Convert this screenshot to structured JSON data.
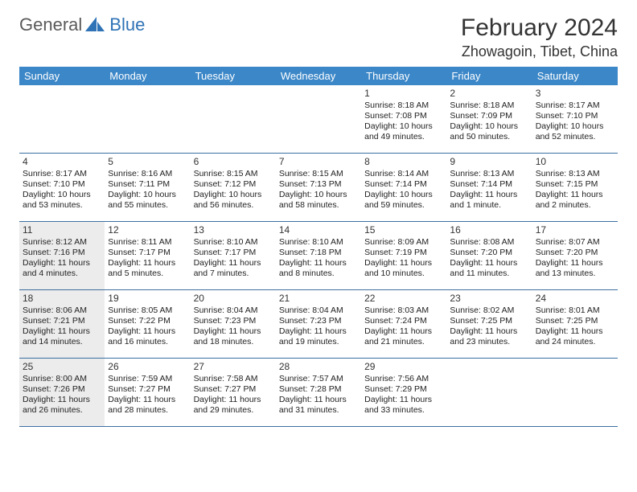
{
  "logo": {
    "text1": "General",
    "text2": "Blue"
  },
  "title": "February 2024",
  "location": "Zhowagoin, Tibet, China",
  "colors": {
    "header_bg": "#3b87c8",
    "header_text": "#ffffff",
    "rule": "#3b6fa0",
    "shade": "#ececec",
    "logo_gray": "#5b5b5b",
    "logo_blue": "#2f73b6"
  },
  "day_headers": [
    "Sunday",
    "Monday",
    "Tuesday",
    "Wednesday",
    "Thursday",
    "Friday",
    "Saturday"
  ],
  "weeks": [
    [
      {
        "n": "",
        "sr": "",
        "ss": "",
        "dl1": "",
        "dl2": "",
        "shade": false
      },
      {
        "n": "",
        "sr": "",
        "ss": "",
        "dl1": "",
        "dl2": "",
        "shade": false
      },
      {
        "n": "",
        "sr": "",
        "ss": "",
        "dl1": "",
        "dl2": "",
        "shade": false
      },
      {
        "n": "",
        "sr": "",
        "ss": "",
        "dl1": "",
        "dl2": "",
        "shade": false
      },
      {
        "n": "1",
        "sr": "Sunrise: 8:18 AM",
        "ss": "Sunset: 7:08 PM",
        "dl1": "Daylight: 10 hours",
        "dl2": "and 49 minutes.",
        "shade": false
      },
      {
        "n": "2",
        "sr": "Sunrise: 8:18 AM",
        "ss": "Sunset: 7:09 PM",
        "dl1": "Daylight: 10 hours",
        "dl2": "and 50 minutes.",
        "shade": false
      },
      {
        "n": "3",
        "sr": "Sunrise: 8:17 AM",
        "ss": "Sunset: 7:10 PM",
        "dl1": "Daylight: 10 hours",
        "dl2": "and 52 minutes.",
        "shade": false
      }
    ],
    [
      {
        "n": "4",
        "sr": "Sunrise: 8:17 AM",
        "ss": "Sunset: 7:10 PM",
        "dl1": "Daylight: 10 hours",
        "dl2": "and 53 minutes.",
        "shade": false
      },
      {
        "n": "5",
        "sr": "Sunrise: 8:16 AM",
        "ss": "Sunset: 7:11 PM",
        "dl1": "Daylight: 10 hours",
        "dl2": "and 55 minutes.",
        "shade": false
      },
      {
        "n": "6",
        "sr": "Sunrise: 8:15 AM",
        "ss": "Sunset: 7:12 PM",
        "dl1": "Daylight: 10 hours",
        "dl2": "and 56 minutes.",
        "shade": false
      },
      {
        "n": "7",
        "sr": "Sunrise: 8:15 AM",
        "ss": "Sunset: 7:13 PM",
        "dl1": "Daylight: 10 hours",
        "dl2": "and 58 minutes.",
        "shade": false
      },
      {
        "n": "8",
        "sr": "Sunrise: 8:14 AM",
        "ss": "Sunset: 7:14 PM",
        "dl1": "Daylight: 10 hours",
        "dl2": "and 59 minutes.",
        "shade": false
      },
      {
        "n": "9",
        "sr": "Sunrise: 8:13 AM",
        "ss": "Sunset: 7:14 PM",
        "dl1": "Daylight: 11 hours",
        "dl2": "and 1 minute.",
        "shade": false
      },
      {
        "n": "10",
        "sr": "Sunrise: 8:13 AM",
        "ss": "Sunset: 7:15 PM",
        "dl1": "Daylight: 11 hours",
        "dl2": "and 2 minutes.",
        "shade": false
      }
    ],
    [
      {
        "n": "11",
        "sr": "Sunrise: 8:12 AM",
        "ss": "Sunset: 7:16 PM",
        "dl1": "Daylight: 11 hours",
        "dl2": "and 4 minutes.",
        "shade": true
      },
      {
        "n": "12",
        "sr": "Sunrise: 8:11 AM",
        "ss": "Sunset: 7:17 PM",
        "dl1": "Daylight: 11 hours",
        "dl2": "and 5 minutes.",
        "shade": false
      },
      {
        "n": "13",
        "sr": "Sunrise: 8:10 AM",
        "ss": "Sunset: 7:17 PM",
        "dl1": "Daylight: 11 hours",
        "dl2": "and 7 minutes.",
        "shade": false
      },
      {
        "n": "14",
        "sr": "Sunrise: 8:10 AM",
        "ss": "Sunset: 7:18 PM",
        "dl1": "Daylight: 11 hours",
        "dl2": "and 8 minutes.",
        "shade": false
      },
      {
        "n": "15",
        "sr": "Sunrise: 8:09 AM",
        "ss": "Sunset: 7:19 PM",
        "dl1": "Daylight: 11 hours",
        "dl2": "and 10 minutes.",
        "shade": false
      },
      {
        "n": "16",
        "sr": "Sunrise: 8:08 AM",
        "ss": "Sunset: 7:20 PM",
        "dl1": "Daylight: 11 hours",
        "dl2": "and 11 minutes.",
        "shade": false
      },
      {
        "n": "17",
        "sr": "Sunrise: 8:07 AM",
        "ss": "Sunset: 7:20 PM",
        "dl1": "Daylight: 11 hours",
        "dl2": "and 13 minutes.",
        "shade": false
      }
    ],
    [
      {
        "n": "18",
        "sr": "Sunrise: 8:06 AM",
        "ss": "Sunset: 7:21 PM",
        "dl1": "Daylight: 11 hours",
        "dl2": "and 14 minutes.",
        "shade": true
      },
      {
        "n": "19",
        "sr": "Sunrise: 8:05 AM",
        "ss": "Sunset: 7:22 PM",
        "dl1": "Daylight: 11 hours",
        "dl2": "and 16 minutes.",
        "shade": false
      },
      {
        "n": "20",
        "sr": "Sunrise: 8:04 AM",
        "ss": "Sunset: 7:23 PM",
        "dl1": "Daylight: 11 hours",
        "dl2": "and 18 minutes.",
        "shade": false
      },
      {
        "n": "21",
        "sr": "Sunrise: 8:04 AM",
        "ss": "Sunset: 7:23 PM",
        "dl1": "Daylight: 11 hours",
        "dl2": "and 19 minutes.",
        "shade": false
      },
      {
        "n": "22",
        "sr": "Sunrise: 8:03 AM",
        "ss": "Sunset: 7:24 PM",
        "dl1": "Daylight: 11 hours",
        "dl2": "and 21 minutes.",
        "shade": false
      },
      {
        "n": "23",
        "sr": "Sunrise: 8:02 AM",
        "ss": "Sunset: 7:25 PM",
        "dl1": "Daylight: 11 hours",
        "dl2": "and 23 minutes.",
        "shade": false
      },
      {
        "n": "24",
        "sr": "Sunrise: 8:01 AM",
        "ss": "Sunset: 7:25 PM",
        "dl1": "Daylight: 11 hours",
        "dl2": "and 24 minutes.",
        "shade": false
      }
    ],
    [
      {
        "n": "25",
        "sr": "Sunrise: 8:00 AM",
        "ss": "Sunset: 7:26 PM",
        "dl1": "Daylight: 11 hours",
        "dl2": "and 26 minutes.",
        "shade": true
      },
      {
        "n": "26",
        "sr": "Sunrise: 7:59 AM",
        "ss": "Sunset: 7:27 PM",
        "dl1": "Daylight: 11 hours",
        "dl2": "and 28 minutes.",
        "shade": false
      },
      {
        "n": "27",
        "sr": "Sunrise: 7:58 AM",
        "ss": "Sunset: 7:27 PM",
        "dl1": "Daylight: 11 hours",
        "dl2": "and 29 minutes.",
        "shade": false
      },
      {
        "n": "28",
        "sr": "Sunrise: 7:57 AM",
        "ss": "Sunset: 7:28 PM",
        "dl1": "Daylight: 11 hours",
        "dl2": "and 31 minutes.",
        "shade": false
      },
      {
        "n": "29",
        "sr": "Sunrise: 7:56 AM",
        "ss": "Sunset: 7:29 PM",
        "dl1": "Daylight: 11 hours",
        "dl2": "and 33 minutes.",
        "shade": false
      },
      {
        "n": "",
        "sr": "",
        "ss": "",
        "dl1": "",
        "dl2": "",
        "shade": false
      },
      {
        "n": "",
        "sr": "",
        "ss": "",
        "dl1": "",
        "dl2": "",
        "shade": false
      }
    ]
  ]
}
